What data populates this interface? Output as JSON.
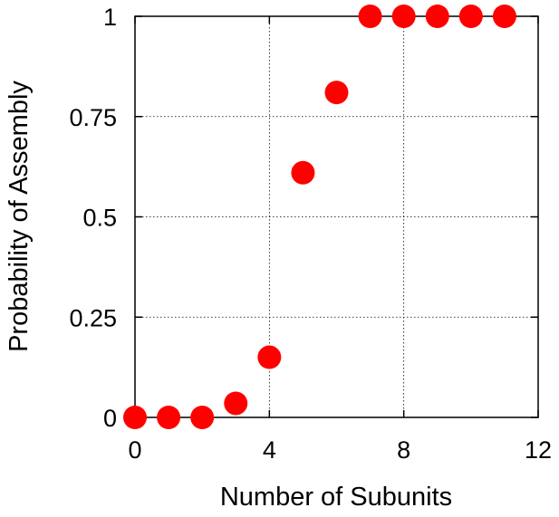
{
  "chart_data": {
    "type": "scatter",
    "title": "",
    "xlabel": "Number of Subunits",
    "ylabel": "Probability of Assembly",
    "xlim": [
      0,
      12
    ],
    "ylim": [
      0,
      1
    ],
    "x_ticks": [
      0,
      4,
      8,
      12
    ],
    "y_ticks": [
      0,
      0.25,
      0.5,
      0.75,
      1
    ],
    "x_tick_labels": [
      "0",
      "4",
      "8",
      "12"
    ],
    "y_tick_labels": [
      "0",
      "0.25",
      "0.5",
      "0.75",
      "1"
    ],
    "grid": true,
    "legend": "none",
    "marker_color": "#ff0000",
    "series": [
      {
        "x": [
          0,
          1,
          2,
          3,
          4,
          5,
          6,
          7,
          8,
          9,
          10,
          11
        ],
        "y": [
          0,
          0,
          0,
          0.035,
          0.15,
          0.61,
          0.81,
          1,
          1,
          1,
          1,
          1
        ]
      }
    ]
  }
}
